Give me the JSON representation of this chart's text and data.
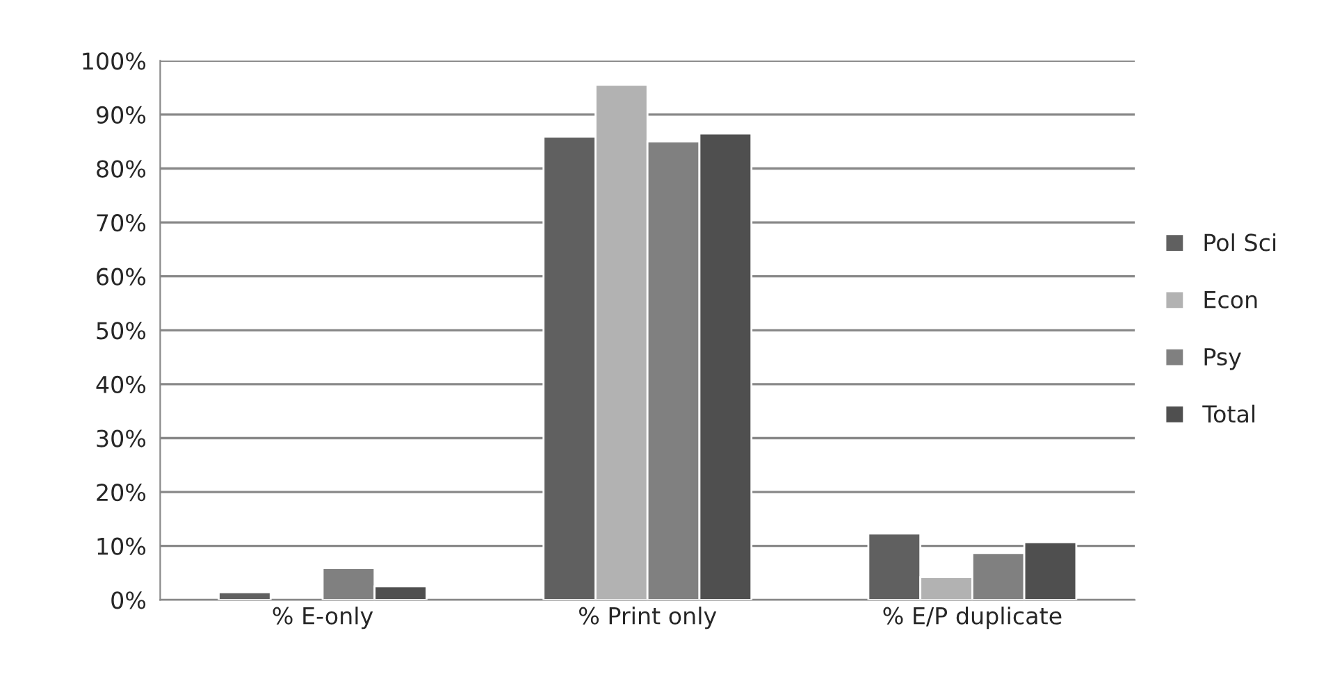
{
  "chart_data": {
    "type": "bar",
    "categories": [
      "% E-only",
      "% Print only",
      "% E/P duplicate"
    ],
    "series": [
      {
        "name": "Pol Sci",
        "color": "#606060",
        "values": [
          1.4,
          85.9,
          12.3
        ]
      },
      {
        "name": "Econ",
        "color": "#b2b2b2",
        "values": [
          null,
          95.5,
          4.2
        ]
      },
      {
        "name": "Psy",
        "color": "#808080",
        "values": [
          5.9,
          85.0,
          8.7
        ]
      },
      {
        "name": "Total",
        "color": "#4f4f4f",
        "values": [
          2.5,
          86.5,
          10.7
        ]
      }
    ],
    "ylim": [
      0,
      100
    ],
    "yticks": [
      {
        "value": 0,
        "label": "0%"
      },
      {
        "value": 10,
        "label": "10%"
      },
      {
        "value": 20,
        "label": "20%"
      },
      {
        "value": 30,
        "label": "30%"
      },
      {
        "value": 40,
        "label": "40%"
      },
      {
        "value": 50,
        "label": "50%"
      },
      {
        "value": 60,
        "label": "60%"
      },
      {
        "value": 70,
        "label": "70%"
      },
      {
        "value": 80,
        "label": "80%"
      },
      {
        "value": 90,
        "label": "90%"
      },
      {
        "value": 100,
        "label": "100%"
      }
    ],
    "grid": "y",
    "legend": "right"
  }
}
